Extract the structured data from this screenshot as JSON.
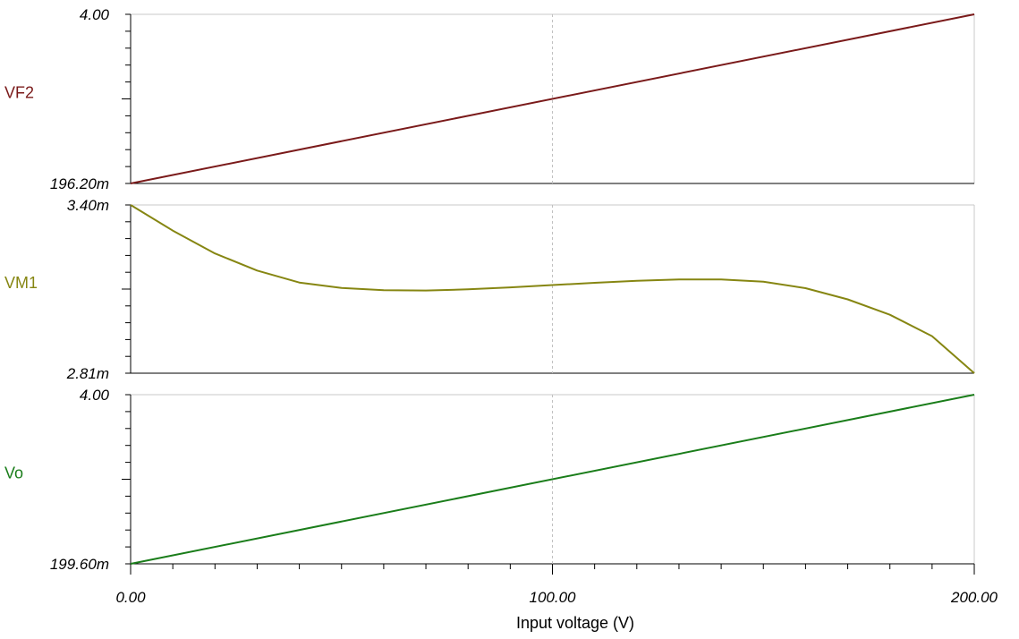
{
  "chart_data": {
    "type": "line",
    "xlabel": "Input voltage (V)",
    "xlim": [
      0,
      200
    ],
    "x_ticks": [
      "0.00",
      "100.00",
      "200.00"
    ],
    "panels": [
      {
        "name": "VF2",
        "color": "#7a1a1a",
        "ylim_labels": {
          "top": "4.00",
          "bottom": "196.20m"
        },
        "ylim": [
          0.1962,
          4.0
        ],
        "series": {
          "x": [
            0,
            200
          ],
          "y": [
            0.1962,
            4.0
          ]
        }
      },
      {
        "name": "VM1",
        "color": "#868612",
        "ylim_labels": {
          "top": "3.40m",
          "bottom": "2.81m"
        },
        "ylim": [
          0.00281,
          0.0034
        ],
        "series": {
          "x": [
            0,
            10,
            20,
            30,
            40,
            50,
            60,
            70,
            80,
            90,
            100,
            110,
            120,
            130,
            140,
            150,
            160,
            170,
            180,
            190,
            200
          ],
          "y": [
            0.0034,
            0.00331,
            0.00323,
            0.00317,
            0.003128,
            0.003109,
            0.003101,
            0.0031,
            0.003104,
            0.003111,
            0.003119,
            0.003127,
            0.003134,
            0.003139,
            0.003139,
            0.003131,
            0.003108,
            0.003069,
            0.003015,
            0.00294,
            0.00281
          ]
        }
      },
      {
        "name": "Vo",
        "color": "#1a7d1a",
        "ylim_labels": {
          "top": "4.00",
          "bottom": "199.60m"
        },
        "ylim": [
          0.1996,
          4.0
        ],
        "series": {
          "x": [
            0,
            200
          ],
          "y": [
            0.1996,
            4.0
          ]
        }
      }
    ]
  }
}
